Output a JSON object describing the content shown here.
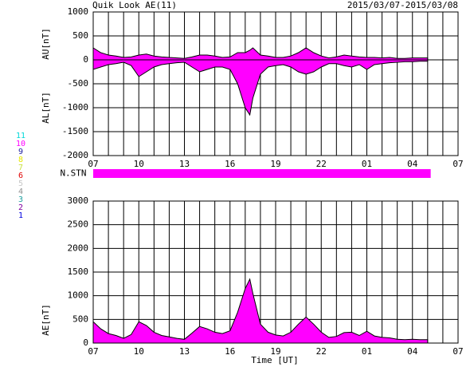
{
  "title": "Quik Look AE(11)",
  "date_range": "2015/03/07-2015/03/08",
  "station_legend": [
    {
      "label": "11",
      "color": "#00d8d8"
    },
    {
      "label": "10",
      "color": "#ff00ff"
    },
    {
      "label": "9",
      "color": "#2020a0"
    },
    {
      "label": "8",
      "color": "#e8e800"
    },
    {
      "label": "7",
      "color": "#c8e040"
    },
    {
      "label": "6",
      "color": "#e00000"
    },
    {
      "label": "5",
      "color": "#c8c8c8"
    },
    {
      "label": "4",
      "color": "#909090"
    },
    {
      "label": "3",
      "color": "#20a0a0"
    },
    {
      "label": "2",
      "color": "#8000a0"
    },
    {
      "label": "1",
      "color": "#0000e0"
    }
  ],
  "chart_data": [
    {
      "type": "area",
      "y_labels": [
        "AU[nT]",
        "AL[nT]"
      ],
      "x": [
        0,
        0.5,
        1,
        1.5,
        2,
        2.5,
        3,
        3.5,
        4,
        4.5,
        5,
        5.5,
        6,
        6.5,
        7,
        7.5,
        8,
        8.5,
        9,
        9.5,
        10,
        10.3,
        10.5,
        11,
        11.5,
        12,
        12.5,
        13,
        13.5,
        14,
        14.5,
        15,
        15.5,
        16,
        16.5,
        17,
        17.5,
        18,
        18.5,
        19,
        19.5,
        20,
        20.5,
        21,
        21.5,
        22
      ],
      "series": [
        {
          "name": "AU",
          "color": "#ff00ff",
          "values": [
            250,
            150,
            100,
            80,
            50,
            60,
            100,
            120,
            80,
            60,
            50,
            40,
            30,
            60,
            100,
            100,
            80,
            50,
            60,
            150,
            150,
            200,
            250,
            100,
            80,
            50,
            50,
            80,
            150,
            250,
            150,
            80,
            40,
            60,
            100,
            80,
            60,
            50,
            50,
            40,
            50,
            30,
            30,
            40,
            40,
            40
          ]
        },
        {
          "name": "AL",
          "color": "#ff00ff",
          "values": [
            -200,
            -150,
            -100,
            -80,
            -50,
            -120,
            -350,
            -250,
            -150,
            -100,
            -80,
            -60,
            -50,
            -150,
            -250,
            -200,
            -150,
            -150,
            -200,
            -500,
            -1000,
            -1150,
            -800,
            -300,
            -150,
            -120,
            -100,
            -150,
            -250,
            -300,
            -250,
            -150,
            -80,
            -80,
            -120,
            -150,
            -100,
            -200,
            -100,
            -80,
            -60,
            -50,
            -40,
            -40,
            -30,
            -30
          ]
        }
      ],
      "xlim": [
        0,
        24
      ],
      "xticks": [
        {
          "value": 0,
          "label": "07"
        },
        {
          "value": 3,
          "label": "10"
        },
        {
          "value": 6,
          "label": "13"
        },
        {
          "value": 9,
          "label": "16"
        },
        {
          "value": 12,
          "label": "19"
        },
        {
          "value": 15,
          "label": "22"
        },
        {
          "value": 18,
          "label": "01"
        },
        {
          "value": 21,
          "label": "04"
        },
        {
          "value": 24,
          "label": "07"
        }
      ],
      "x_minor_ticks": [
        0,
        1,
        2,
        3,
        4,
        5,
        6,
        7,
        8,
        9,
        10,
        11,
        12,
        13,
        14,
        15,
        16,
        17,
        18,
        19,
        20,
        21,
        22,
        23,
        24
      ],
      "ylim": [
        -2000,
        1000
      ],
      "yticks": [
        -2000,
        -1500,
        -1000,
        -500,
        0,
        500,
        1000
      ]
    },
    {
      "type": "stations",
      "y_label": "N.STN",
      "segments": [
        {
          "x0": 0,
          "x1": 22.2,
          "stations": 10,
          "color": "#ff00ff"
        }
      ],
      "xlim": [
        0,
        24
      ]
    },
    {
      "type": "area",
      "y_labels": [
        "AE[nT]"
      ],
      "x_label": "Time [UT]",
      "x": [
        0,
        0.5,
        1,
        1.5,
        2,
        2.5,
        3,
        3.5,
        4,
        4.5,
        5,
        5.5,
        6,
        6.5,
        7,
        7.5,
        8,
        8.5,
        9,
        9.5,
        10,
        10.3,
        10.5,
        11,
        11.5,
        12,
        12.5,
        13,
        13.5,
        14,
        14.5,
        15,
        15.5,
        16,
        16.5,
        17,
        17.5,
        18,
        18.5,
        19,
        19.5,
        20,
        20.5,
        21,
        21.5,
        22
      ],
      "series": [
        {
          "name": "AE",
          "color": "#ff00ff",
          "values": [
            450,
            300,
            200,
            160,
            100,
            180,
            450,
            370,
            230,
            160,
            130,
            100,
            80,
            210,
            350,
            300,
            230,
            200,
            260,
            650,
            1150,
            1350,
            1050,
            400,
            230,
            170,
            150,
            230,
            400,
            550,
            400,
            230,
            120,
            140,
            220,
            230,
            160,
            250,
            150,
            120,
            110,
            80,
            70,
            80,
            70,
            70
          ]
        }
      ],
      "xlim": [
        0,
        24
      ],
      "xticks": [
        {
          "value": 0,
          "label": "07"
        },
        {
          "value": 3,
          "label": "10"
        },
        {
          "value": 6,
          "label": "13"
        },
        {
          "value": 9,
          "label": "16"
        },
        {
          "value": 12,
          "label": "19"
        },
        {
          "value": 15,
          "label": "22"
        },
        {
          "value": 18,
          "label": "01"
        },
        {
          "value": 21,
          "label": "04"
        },
        {
          "value": 24,
          "label": "07"
        }
      ],
      "x_minor_ticks": [
        0,
        1,
        2,
        3,
        4,
        5,
        6,
        7,
        8,
        9,
        10,
        11,
        12,
        13,
        14,
        15,
        16,
        17,
        18,
        19,
        20,
        21,
        22,
        23,
        24
      ],
      "ylim": [
        0,
        3000
      ],
      "yticks": [
        0,
        500,
        1000,
        1500,
        2000,
        2500,
        3000
      ]
    }
  ]
}
